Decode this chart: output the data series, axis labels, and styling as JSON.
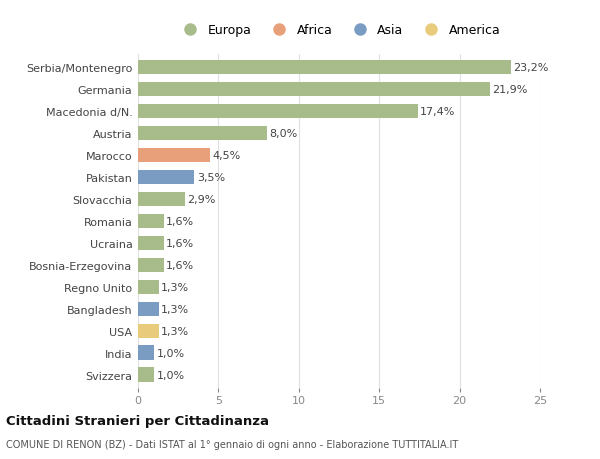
{
  "countries": [
    "Serbia/Montenegro",
    "Germania",
    "Macedonia d/N.",
    "Austria",
    "Marocco",
    "Pakistan",
    "Slovacchia",
    "Romania",
    "Ucraina",
    "Bosnia-Erzegovina",
    "Regno Unito",
    "Bangladesh",
    "USA",
    "India",
    "Svizzera"
  ],
  "values": [
    23.2,
    21.9,
    17.4,
    8.0,
    4.5,
    3.5,
    2.9,
    1.6,
    1.6,
    1.6,
    1.3,
    1.3,
    1.3,
    1.0,
    1.0
  ],
  "continents": [
    "Europa",
    "Europa",
    "Europa",
    "Europa",
    "Africa",
    "Asia",
    "Europa",
    "Europa",
    "Europa",
    "Europa",
    "Europa",
    "Asia",
    "America",
    "Asia",
    "Europa"
  ],
  "colors": {
    "Europa": "#a8bb8a",
    "Africa": "#e8a07a",
    "Asia": "#7b9cc2",
    "America": "#e8cc7c"
  },
  "legend_order": [
    "Europa",
    "Africa",
    "Asia",
    "America"
  ],
  "title": "Cittadini Stranieri per Cittadinanza",
  "subtitle": "COMUNE DI RENON (BZ) - Dati ISTAT al 1° gennaio di ogni anno - Elaborazione TUTTITALIA.IT",
  "xlim": [
    0,
    25
  ],
  "xticks": [
    0,
    5,
    10,
    15,
    20,
    25
  ],
  "bg_color": "#ffffff",
  "grid_color": "#e0e0e0",
  "bar_height": 0.65
}
